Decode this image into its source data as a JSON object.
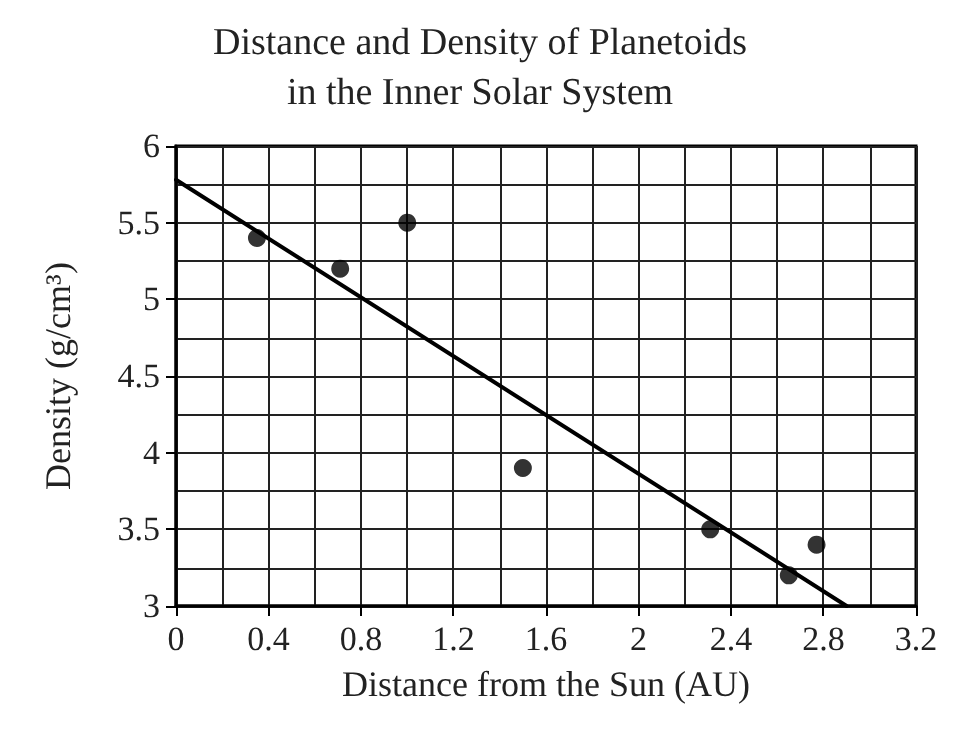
{
  "chart_data": {
    "type": "scatter",
    "title": "Distance and Density of Planetoids\nin the Inner Solar System",
    "xlabel": "Distance from the Sun (AU)",
    "ylabel": "Density (g/cm³)",
    "xlim": [
      0,
      3.2
    ],
    "xticks": [
      0,
      0.4,
      0.8,
      1.2,
      1.6,
      2,
      2.4,
      2.8,
      3.2
    ],
    "ylim": [
      3,
      6
    ],
    "yticks": [
      3,
      3.5,
      4,
      4.5,
      5,
      5.5,
      6
    ],
    "grid": true,
    "series": [
      {
        "color": "#000000",
        "marker": "circle",
        "x": [
          0.35,
          0.71,
          1.0,
          1.5,
          2.31,
          2.65,
          2.77
        ],
        "values": [
          5.4,
          5.2,
          5.5,
          3.9,
          3.5,
          3.2,
          3.4
        ]
      },
      {
        "type": "line",
        "color": "#000000",
        "marker": "none",
        "line_style": "solid",
        "x": [
          0,
          2.9
        ],
        "values": [
          5.78,
          3.0
        ]
      }
    ]
  }
}
